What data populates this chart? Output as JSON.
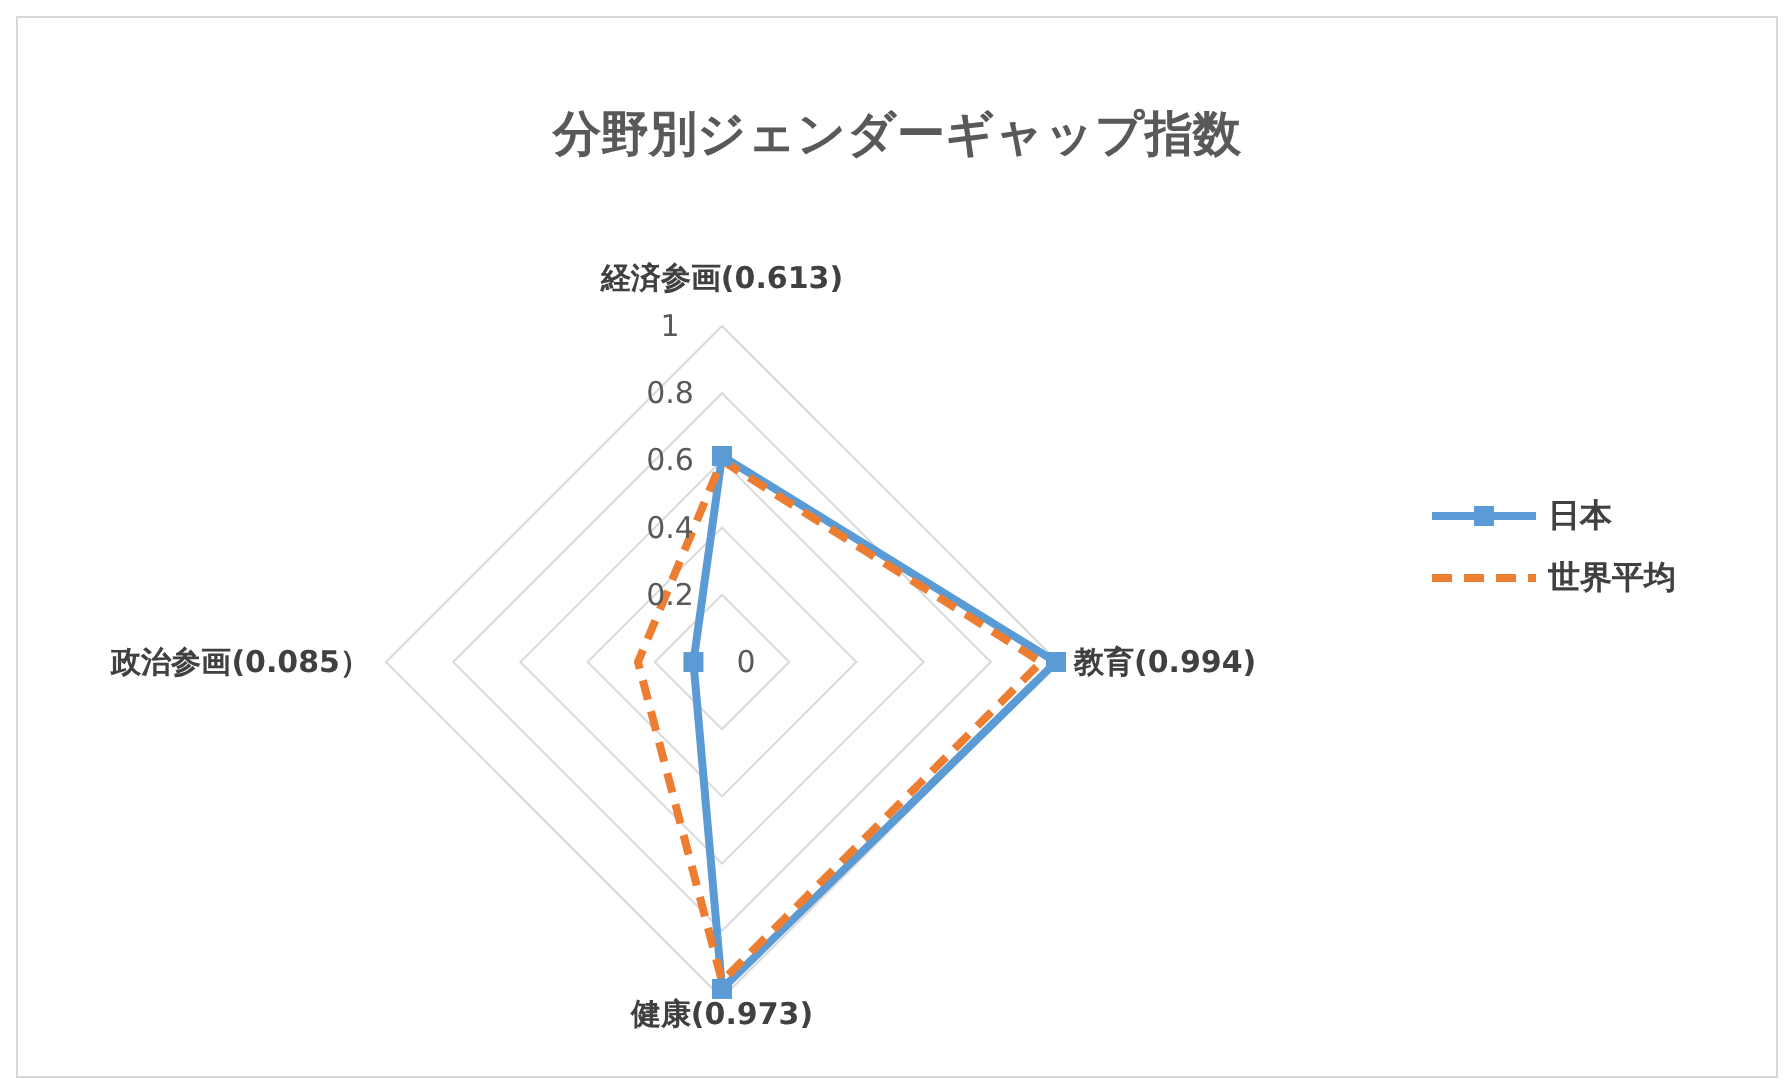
{
  "chart_data": {
    "type": "radar",
    "title": "分野別ジェンダーギャップ指数",
    "categories": [
      "経済参画(0.613)",
      "教育(0.994)",
      "健康(0.973)",
      "政治参画(0.085）"
    ],
    "series": [
      {
        "name": "日本",
        "color": "#5b9bd5",
        "values": [
          0.613,
          0.994,
          0.973,
          0.085
        ],
        "marker": "square",
        "line_style": "solid"
      },
      {
        "name": "世界平均",
        "color": "#ed7d31",
        "values": [
          0.6,
          0.95,
          0.95,
          0.25
        ],
        "marker": "none",
        "line_style": "dashed"
      }
    ],
    "ylim": [
      0,
      1
    ],
    "yticks": [
      0,
      0.2,
      0.4,
      0.6,
      0.8,
      1
    ],
    "grid": true,
    "legend": "right"
  }
}
